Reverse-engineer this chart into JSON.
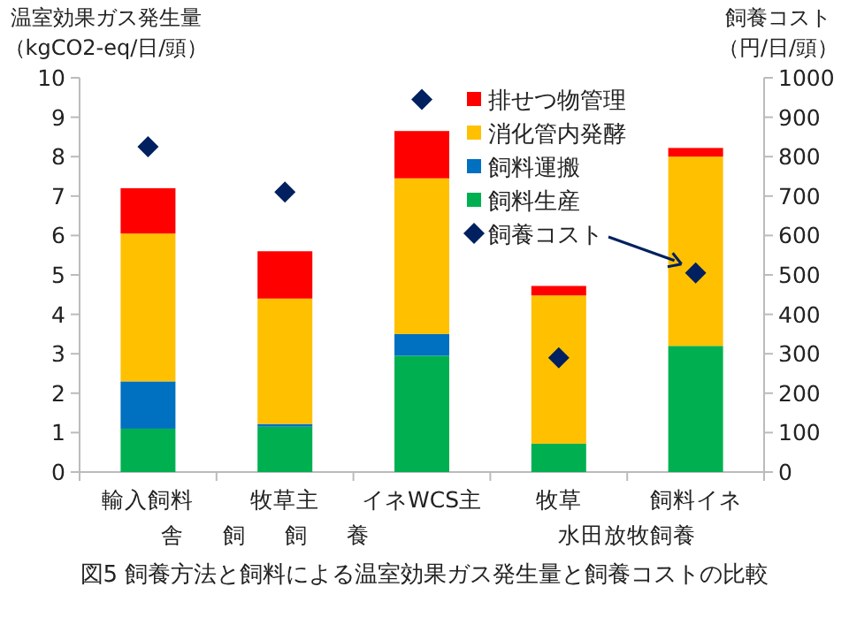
{
  "chart_data": {
    "type": "bar",
    "stacked": true,
    "title": "図5  飼養方法と飼料による温室効果ガス発生量と飼養コストの比較",
    "ylabel": "温室効果ガス発生量（kgCO2-eq/日/頭）",
    "y2label": "飼養コスト（円/日/頭）",
    "categories": [
      "輸入飼料",
      "牧草主",
      "イネWCS主",
      "牧草",
      "飼料イネ"
    ],
    "annotations": [
      "舎飼飼養",
      "水田放牧飼養"
    ],
    "series": [
      {
        "name": "飼料生産",
        "color": "#00b050",
        "values": [
          1.1,
          1.15,
          2.95,
          0.72,
          3.2
        ]
      },
      {
        "name": "飼料運搬",
        "color": "#0070c0",
        "values": [
          1.2,
          0.07,
          0.55,
          0,
          0
        ]
      },
      {
        "name": "消化管内発酵",
        "color": "#ffc000",
        "values": [
          3.75,
          3.18,
          3.95,
          3.76,
          4.8
        ]
      },
      {
        "name": "排せつ物管理",
        "color": "#ff0000",
        "values": [
          1.15,
          1.2,
          1.2,
          0.24,
          0.22
        ]
      },
      {
        "name": "飼養コスト",
        "type": "scatter",
        "axis": "y2",
        "marker": "diamond",
        "color": "#002060",
        "values": [
          825,
          710,
          945,
          290,
          505
        ]
      }
    ],
    "ylim": [
      0,
      10
    ],
    "yticks": [
      0,
      1,
      2,
      3,
      4,
      5,
      6,
      7,
      8,
      9,
      10
    ],
    "y2lim": [
      0,
      1000
    ],
    "y2ticks": [
      0,
      100,
      200,
      300,
      400,
      500,
      600,
      700,
      800,
      900,
      1000
    ],
    "legend": "top right",
    "grid": false
  }
}
